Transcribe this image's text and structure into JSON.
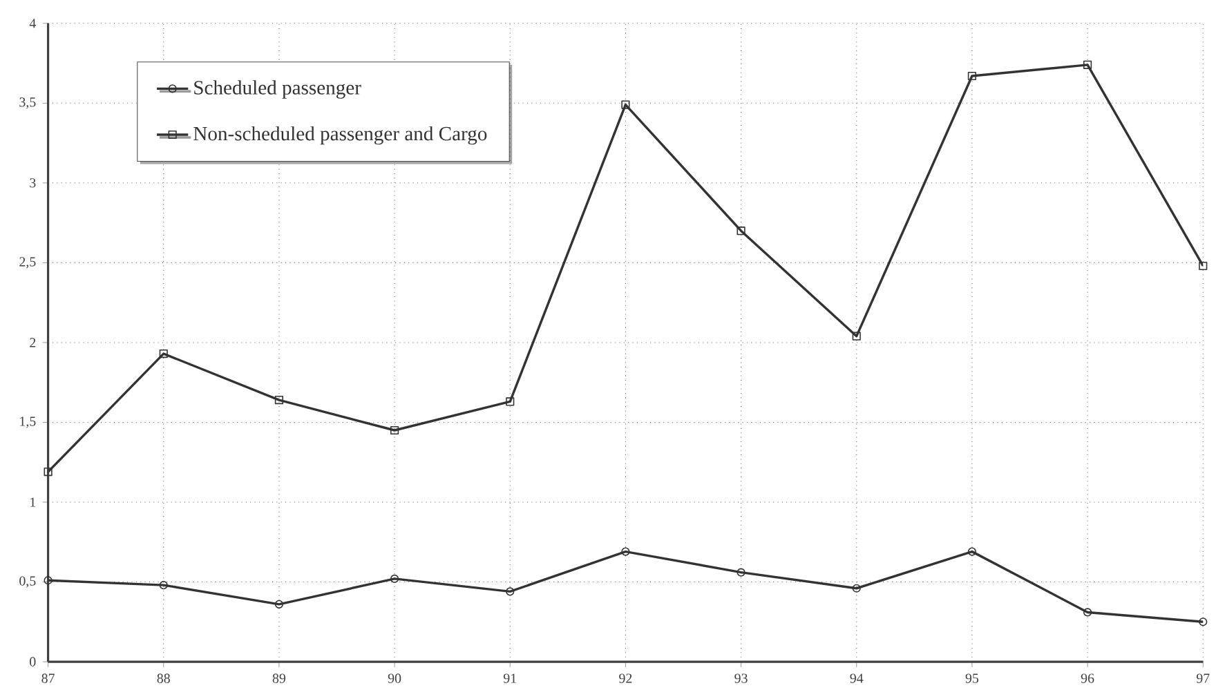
{
  "chart_data": {
    "type": "line",
    "categories": [
      "87",
      "88",
      "89",
      "90",
      "91",
      "92",
      "93",
      "94",
      "95",
      "96",
      "97"
    ],
    "series": [
      {
        "name": "Scheduled passenger",
        "color": "#333333",
        "marker": "circle",
        "values": [
          0.51,
          0.48,
          0.36,
          0.52,
          0.44,
          0.69,
          0.56,
          0.46,
          0.69,
          0.31,
          0.25
        ]
      },
      {
        "name": "Non-scheduled passenger and Cargo",
        "color": "#333333",
        "marker": "square",
        "values": [
          1.19,
          1.93,
          1.64,
          1.45,
          1.63,
          3.49,
          2.7,
          2.04,
          3.67,
          3.74,
          2.48
        ]
      }
    ],
    "ylim": [
      0,
      4
    ],
    "yticks": [
      0,
      {
        "value": 0.5,
        "label": "0,5"
      },
      1,
      {
        "value": 1.5,
        "label": "1,5"
      },
      2,
      {
        "value": 2.5,
        "label": "2,5"
      },
      3,
      {
        "value": 3.5,
        "label": "3,5"
      },
      4
    ],
    "grid": true,
    "legend": "top left",
    "line_style": "solid"
  }
}
